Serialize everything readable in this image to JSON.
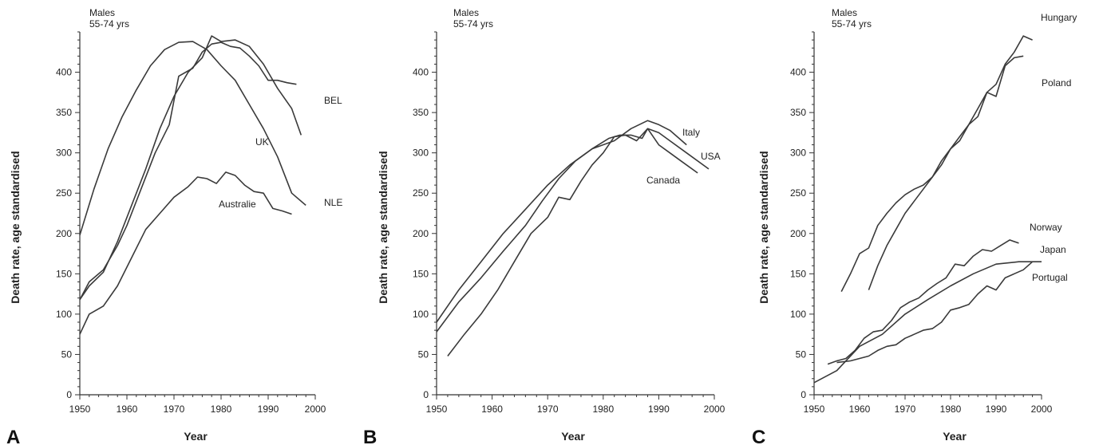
{
  "chart_data": [
    {
      "type": "line",
      "panel_label": "A",
      "annotation": "Males\n55-74 yrs",
      "xlabel": "Year",
      "ylabel": "Death rate, age standardised",
      "xlim": [
        1950,
        2000
      ],
      "ylim": [
        0,
        450
      ],
      "xticks": [
        1950,
        1960,
        1970,
        1980,
        1990,
        2000
      ],
      "yticks": [
        0,
        50,
        100,
        150,
        200,
        250,
        300,
        350,
        400
      ],
      "grid": false,
      "series": [
        {
          "name": "UK",
          "x": [
            1950,
            1953,
            1956,
            1959,
            1962,
            1965,
            1968,
            1971,
            1974,
            1977,
            1980,
            1983,
            1986,
            1989,
            1992,
            1995,
            1998
          ],
          "y": [
            198,
            255,
            305,
            345,
            378,
            408,
            428,
            437,
            438,
            428,
            408,
            390,
            360,
            330,
            295,
            250,
            235
          ]
        },
        {
          "name": "BEL",
          "x": [
            1950,
            1952,
            1955,
            1958,
            1960,
            1963,
            1966,
            1969,
            1971,
            1974,
            1976,
            1978,
            1980,
            1982,
            1984,
            1986,
            1988,
            1990,
            1992,
            1994,
            1996
          ],
          "y": [
            118,
            140,
            155,
            185,
            210,
            255,
            300,
            335,
            395,
            405,
            425,
            435,
            437,
            432,
            430,
            420,
            408,
            390,
            390,
            387,
            385
          ]
        },
        {
          "name": "NLE",
          "x": [
            1950,
            1952,
            1955,
            1958,
            1961,
            1964,
            1967,
            1970,
            1973,
            1976,
            1978,
            1980,
            1983,
            1986,
            1989,
            1992,
            1995,
            1997
          ],
          "y": [
            118,
            135,
            152,
            190,
            235,
            280,
            330,
            370,
            400,
            418,
            445,
            438,
            440,
            432,
            410,
            380,
            355,
            322
          ]
        },
        {
          "name": "Australie",
          "x": [
            1950,
            1952,
            1955,
            1958,
            1961,
            1964,
            1967,
            1970,
            1973,
            1975,
            1977,
            1979,
            1981,
            1983,
            1985,
            1987,
            1989,
            1991,
            1993,
            1995
          ],
          "y": [
            75,
            100,
            110,
            135,
            170,
            205,
            225,
            245,
            258,
            270,
            268,
            262,
            276,
            272,
            260,
            252,
            250,
            231,
            228,
            224
          ]
        }
      ]
    },
    {
      "type": "line",
      "panel_label": "B",
      "annotation": "Males\n55-74 yrs",
      "xlabel": "Year",
      "ylabel": "Death rate, age standardised",
      "xlim": [
        1950,
        2000
      ],
      "ylim": [
        0,
        450
      ],
      "xticks": [
        1950,
        1960,
        1970,
        1980,
        1990,
        2000
      ],
      "yticks": [
        0,
        50,
        100,
        150,
        200,
        250,
        300,
        350,
        400
      ],
      "grid": false,
      "series": [
        {
          "name": "Italy",
          "x": [
            1950,
            1954,
            1958,
            1962,
            1966,
            1970,
            1974,
            1978,
            1982,
            1985,
            1988,
            1990,
            1992,
            1995
          ],
          "y": [
            90,
            130,
            165,
            200,
            230,
            260,
            285,
            305,
            315,
            330,
            340,
            335,
            328,
            310
          ]
        },
        {
          "name": "USA",
          "x": [
            1950,
            1954,
            1958,
            1962,
            1966,
            1969,
            1972,
            1975,
            1978,
            1981,
            1983,
            1985,
            1987,
            1988,
            1990,
            1992,
            1995,
            1999
          ],
          "y": [
            78,
            115,
            145,
            178,
            210,
            240,
            268,
            290,
            305,
            318,
            322,
            322,
            318,
            330,
            325,
            315,
            300,
            280
          ]
        },
        {
          "name": "Canada",
          "x": [
            1952,
            1955,
            1958,
            1961,
            1964,
            1967,
            1970,
            1972,
            1974,
            1976,
            1978,
            1980,
            1982,
            1984,
            1986,
            1988,
            1990,
            1992,
            1994,
            1997
          ],
          "y": [
            48,
            75,
            100,
            130,
            165,
            200,
            220,
            245,
            242,
            265,
            285,
            300,
            320,
            322,
            315,
            330,
            310,
            300,
            290,
            275
          ]
        }
      ]
    },
    {
      "type": "line",
      "panel_label": "C",
      "annotation": "Males\n55-74 yrs",
      "xlabel": "Year",
      "ylabel": "Death rate, age standardised",
      "xlim": [
        1950,
        2000
      ],
      "ylim": [
        0,
        450
      ],
      "xticks": [
        1950,
        1960,
        1970,
        1980,
        1990,
        2000
      ],
      "yticks": [
        0,
        50,
        100,
        150,
        200,
        250,
        300,
        350,
        400
      ],
      "grid": false,
      "series": [
        {
          "name": "Hungary",
          "x": [
            1956,
            1958,
            1960,
            1962,
            1964,
            1966,
            1968,
            1970,
            1972,
            1974,
            1976,
            1978,
            1980,
            1982,
            1984,
            1986,
            1988,
            1990,
            1992,
            1994,
            1996,
            1998
          ],
          "y": [
            128,
            150,
            175,
            182,
            210,
            225,
            238,
            248,
            255,
            260,
            270,
            285,
            305,
            315,
            335,
            355,
            375,
            385,
            410,
            425,
            445,
            440
          ]
        },
        {
          "name": "Poland",
          "x": [
            1962,
            1964,
            1966,
            1968,
            1970,
            1972,
            1974,
            1976,
            1978,
            1980,
            1982,
            1984,
            1986,
            1988,
            1990,
            1992,
            1994,
            1996
          ],
          "y": [
            130,
            160,
            185,
            205,
            225,
            240,
            255,
            270,
            290,
            305,
            320,
            335,
            345,
            375,
            370,
            408,
            418,
            420
          ]
        },
        {
          "name": "Norway",
          "x": [
            1953,
            1955,
            1957,
            1959,
            1961,
            1963,
            1965,
            1967,
            1969,
            1971,
            1973,
            1975,
            1977,
            1979,
            1981,
            1983,
            1985,
            1987,
            1989,
            1991,
            1993,
            1995
          ],
          "y": [
            38,
            42,
            45,
            55,
            70,
            78,
            80,
            92,
            108,
            115,
            120,
            130,
            138,
            145,
            162,
            160,
            172,
            180,
            178,
            185,
            192,
            188
          ]
        },
        {
          "name": "Japan",
          "x": [
            1950,
            1955,
            1960,
            1965,
            1970,
            1975,
            1980,
            1985,
            1990,
            1995,
            2000
          ],
          "y": [
            15,
            30,
            60,
            75,
            100,
            118,
            135,
            150,
            162,
            165,
            165
          ]
        },
        {
          "name": "Portugal",
          "x": [
            1955,
            1958,
            1960,
            1962,
            1964,
            1966,
            1968,
            1970,
            1972,
            1974,
            1976,
            1978,
            1980,
            1982,
            1984,
            1986,
            1988,
            1990,
            1992,
            1994,
            1996,
            1998
          ],
          "y": [
            40,
            42,
            45,
            48,
            55,
            60,
            62,
            70,
            75,
            80,
            82,
            90,
            105,
            108,
            112,
            125,
            135,
            130,
            145,
            150,
            155,
            165
          ]
        }
      ]
    }
  ]
}
